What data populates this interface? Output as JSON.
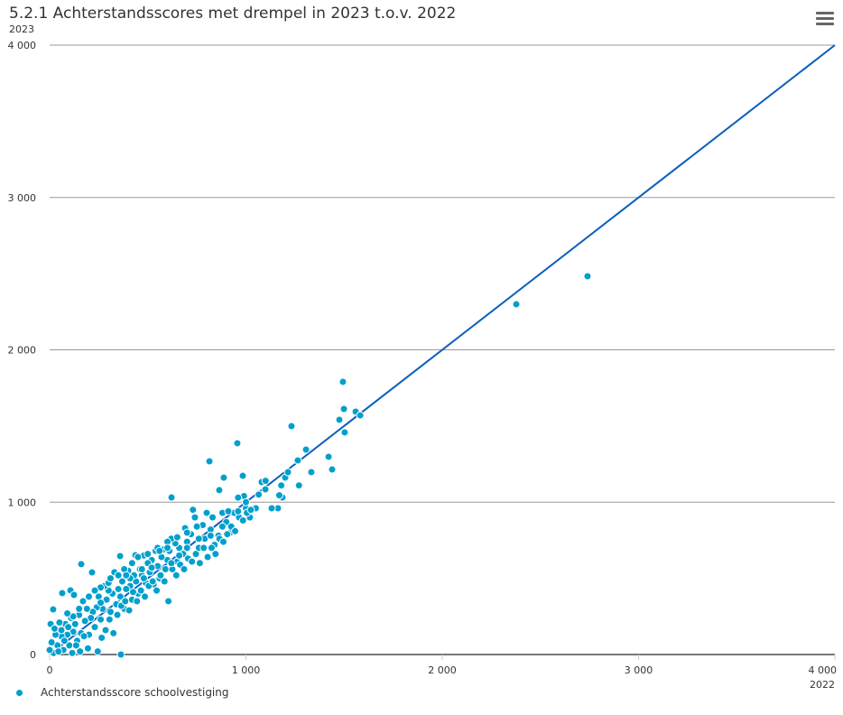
{
  "chart_data": {
    "type": "scatter",
    "title": "5.2.1 Achterstandsscores met drempel in 2023 t.o.v. 2022",
    "xlabel": "2022",
    "ylabel": "2023",
    "xlim": [
      0,
      4000
    ],
    "ylim": [
      0,
      4000
    ],
    "xticks": [
      0,
      1000,
      2000,
      3000,
      4000
    ],
    "yticks": [
      0,
      1000,
      2000,
      3000,
      4000
    ],
    "xtick_labels": [
      "0",
      "1 000",
      "2 000",
      "3 000",
      "4 000"
    ],
    "ytick_labels": [
      "0",
      "1 000",
      "2 000",
      "3 000",
      "4 000"
    ],
    "grid": "horizontal",
    "legend": {
      "label": "Achterstandsscore schoolvestiging",
      "placement": "bottom-left"
    },
    "reference_line": {
      "from": [
        0,
        0
      ],
      "to": [
        4000,
        4000
      ],
      "color": "#0a5ebd"
    },
    "series": [
      {
        "name": "Achterstandsscore schoolvestiging",
        "color": "#00a0cc",
        "points": [
          [
            2740,
            2483
          ],
          [
            2377,
            2299
          ],
          [
            1494,
            1790
          ],
          [
            1499,
            1612
          ],
          [
            1559,
            1594
          ],
          [
            1582,
            1570
          ],
          [
            1476,
            1541
          ],
          [
            1503,
            1458
          ],
          [
            1232,
            1499
          ],
          [
            956,
            1387
          ],
          [
            814,
            1268
          ],
          [
            621,
            1031
          ],
          [
            1333,
            1197
          ],
          [
            1306,
            1345
          ],
          [
            1421,
            1298
          ],
          [
            1439,
            1215
          ],
          [
            1264,
            1274
          ],
          [
            1200,
            1161
          ],
          [
            1214,
            1197
          ],
          [
            984,
            1173
          ],
          [
            887,
            1161
          ],
          [
            864,
            1079
          ],
          [
            1080,
            1132
          ],
          [
            1099,
            1084
          ],
          [
            1163,
            960
          ],
          [
            1131,
            960
          ],
          [
            1186,
            1031
          ],
          [
            363,
            0
          ],
          [
            161,
            593
          ],
          [
            216,
            539
          ],
          [
            359,
            646
          ],
          [
            437,
            652
          ],
          [
            18,
            296
          ],
          [
            64,
            403
          ],
          [
            106,
            421
          ],
          [
            124,
            391
          ],
          [
            1180,
            1110
          ],
          [
            1170,
            1045
          ],
          [
            1270,
            1110
          ],
          [
            1050,
            960
          ],
          [
            1020,
            900
          ],
          [
            990,
            1040
          ],
          [
            960,
            1030
          ],
          [
            1000,
            960
          ],
          [
            940,
            930
          ],
          [
            920,
            800
          ],
          [
            900,
            870
          ],
          [
            880,
            930
          ],
          [
            860,
            780
          ],
          [
            840,
            720
          ],
          [
            830,
            900
          ],
          [
            820,
            820
          ],
          [
            800,
            930
          ],
          [
            790,
            760
          ],
          [
            780,
            850
          ],
          [
            760,
            700
          ],
          [
            740,
            900
          ],
          [
            730,
            950
          ],
          [
            720,
            790
          ],
          [
            700,
            740
          ],
          [
            690,
            830
          ],
          [
            680,
            660
          ],
          [
            660,
            700
          ],
          [
            650,
            610
          ],
          [
            640,
            730
          ],
          [
            620,
            760
          ],
          [
            610,
            680
          ],
          [
            600,
            620
          ],
          [
            590,
            560
          ],
          [
            580,
            690
          ],
          [
            570,
            640
          ],
          [
            560,
            500
          ],
          [
            550,
            580
          ],
          [
            540,
            680
          ],
          [
            530,
            460
          ],
          [
            520,
            620
          ],
          [
            510,
            540
          ],
          [
            500,
            600
          ],
          [
            490,
            470
          ],
          [
            480,
            650
          ],
          [
            470,
            520
          ],
          [
            460,
            560
          ],
          [
            450,
            400
          ],
          [
            440,
            480
          ],
          [
            430,
            520
          ],
          [
            420,
            360
          ],
          [
            410,
            450
          ],
          [
            400,
            550
          ],
          [
            390,
            430
          ],
          [
            380,
            300
          ],
          [
            370,
            480
          ],
          [
            360,
            380
          ],
          [
            350,
            430
          ],
          [
            340,
            330
          ],
          [
            330,
            540
          ],
          [
            320,
            400
          ],
          [
            310,
            280
          ],
          [
            300,
            420
          ],
          [
            290,
            360
          ],
          [
            280,
            450
          ],
          [
            270,
            300
          ],
          [
            260,
            230
          ],
          [
            250,
            380
          ],
          [
            240,
            310
          ],
          [
            230,
            180
          ],
          [
            220,
            280
          ],
          [
            210,
            240
          ],
          [
            200,
            130
          ],
          [
            190,
            300
          ],
          [
            180,
            220
          ],
          [
            170,
            350
          ],
          [
            160,
            140
          ],
          [
            150,
            260
          ],
          [
            140,
            90
          ],
          [
            130,
            200
          ],
          [
            120,
            150
          ],
          [
            110,
            240
          ],
          [
            100,
            60
          ],
          [
            90,
            130
          ],
          [
            80,
            200
          ],
          [
            70,
            30
          ],
          [
            60,
            120
          ],
          [
            50,
            210
          ],
          [
            40,
            60
          ],
          [
            30,
            130
          ],
          [
            20,
            10
          ],
          [
            10,
            80
          ],
          [
            5,
            200
          ],
          [
            0,
            30
          ],
          [
            25,
            170
          ],
          [
            45,
            20
          ],
          [
            75,
            90
          ],
          [
            95,
            180
          ],
          [
            115,
            10
          ],
          [
            135,
            60
          ],
          [
            155,
            20
          ],
          [
            175,
            120
          ],
          [
            195,
            40
          ],
          [
            245,
            20
          ],
          [
            265,
            110
          ],
          [
            285,
            160
          ],
          [
            305,
            230
          ],
          [
            325,
            140
          ],
          [
            345,
            260
          ],
          [
            365,
            320
          ],
          [
            385,
            350
          ],
          [
            405,
            290
          ],
          [
            425,
            410
          ],
          [
            445,
            350
          ],
          [
            465,
            420
          ],
          [
            485,
            380
          ],
          [
            505,
            450
          ],
          [
            525,
            480
          ],
          [
            545,
            420
          ],
          [
            565,
            520
          ],
          [
            585,
            480
          ],
          [
            605,
            350
          ],
          [
            625,
            560
          ],
          [
            645,
            520
          ],
          [
            665,
            590
          ],
          [
            685,
            560
          ],
          [
            705,
            630
          ],
          [
            725,
            610
          ],
          [
            745,
            660
          ],
          [
            765,
            600
          ],
          [
            785,
            700
          ],
          [
            805,
            640
          ],
          [
            825,
            700
          ],
          [
            845,
            660
          ],
          [
            865,
            760
          ],
          [
            885,
            740
          ],
          [
            905,
            790
          ],
          [
            925,
            840
          ],
          [
            945,
            810
          ],
          [
            965,
            900
          ],
          [
            985,
            880
          ],
          [
            1005,
            930
          ],
          [
            1025,
            950
          ],
          [
            1065,
            1050
          ],
          [
            1100,
            1140
          ],
          [
            350,
            520
          ],
          [
            380,
            560
          ],
          [
            420,
            600
          ],
          [
            450,
            640
          ],
          [
            500,
            660
          ],
          [
            550,
            700
          ],
          [
            600,
            740
          ],
          [
            650,
            770
          ],
          [
            700,
            800
          ],
          [
            750,
            840
          ],
          [
            560,
            680
          ],
          [
            600,
            700
          ],
          [
            470,
            560
          ],
          [
            520,
            570
          ],
          [
            300,
            470
          ],
          [
            260,
            440
          ],
          [
            230,
            420
          ],
          [
            200,
            380
          ],
          [
            150,
            300
          ],
          [
            120,
            250
          ],
          [
            90,
            270
          ],
          [
            60,
            160
          ],
          [
            260,
            340
          ],
          [
            310,
            500
          ],
          [
            410,
            500
          ],
          [
            390,
            520
          ],
          [
            480,
            500
          ],
          [
            620,
            600
          ],
          [
            660,
            650
          ],
          [
            700,
            700
          ],
          [
            760,
            760
          ],
          [
            820,
            780
          ],
          [
            880,
            840
          ],
          [
            910,
            940
          ],
          [
            960,
            940
          ],
          [
            1000,
            1000
          ]
        ]
      }
    ]
  }
}
